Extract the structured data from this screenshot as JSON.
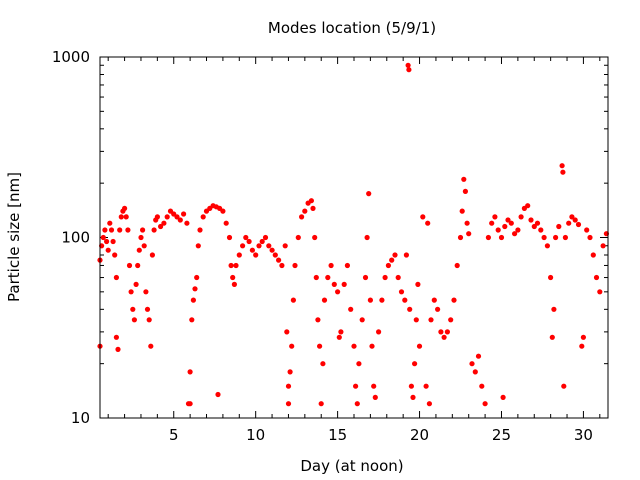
{
  "chart_data": {
    "type": "scatter",
    "title": "Modes location (5/9/1)",
    "xlabel": "Day (at noon)",
    "ylabel": "Particle size [nm]",
    "xlim": [
      0.5,
      31.5
    ],
    "ylim": [
      10,
      1000
    ],
    "y_scale": "log",
    "grid": false,
    "legend": "none",
    "x_ticks": [
      5,
      10,
      15,
      20,
      25,
      30
    ],
    "y_ticks": [
      10,
      100,
      1000
    ],
    "x_tick_labels": [
      "5",
      "10",
      "15",
      "20",
      "25",
      "30"
    ],
    "y_tick_labels": [
      "10",
      "100",
      "1000"
    ],
    "marker_color": "#ff0000",
    "series": [
      {
        "values": [
          [
            0.5,
            25
          ],
          [
            0.5,
            75
          ],
          [
            0.6,
            90
          ],
          [
            0.7,
            100
          ],
          [
            0.8,
            110
          ],
          [
            0.9,
            95
          ],
          [
            1.0,
            85
          ],
          [
            1.1,
            120
          ],
          [
            1.2,
            110
          ],
          [
            1.3,
            95
          ],
          [
            1.4,
            80
          ],
          [
            1.5,
            28
          ],
          [
            1.5,
            60
          ],
          [
            1.6,
            24
          ],
          [
            1.7,
            110
          ],
          [
            1.8,
            130
          ],
          [
            1.9,
            140
          ],
          [
            2.0,
            145
          ],
          [
            2.1,
            130
          ],
          [
            2.2,
            110
          ],
          [
            2.3,
            70
          ],
          [
            2.4,
            50
          ],
          [
            2.5,
            40
          ],
          [
            2.6,
            35
          ],
          [
            2.7,
            55
          ],
          [
            2.8,
            70
          ],
          [
            2.9,
            85
          ],
          [
            3.0,
            100
          ],
          [
            3.1,
            110
          ],
          [
            3.2,
            90
          ],
          [
            3.3,
            50
          ],
          [
            3.4,
            40
          ],
          [
            3.5,
            35
          ],
          [
            3.6,
            25
          ],
          [
            3.7,
            80
          ],
          [
            3.8,
            110
          ],
          [
            3.9,
            125
          ],
          [
            4.0,
            130
          ],
          [
            4.2,
            115
          ],
          [
            4.4,
            120
          ],
          [
            4.6,
            130
          ],
          [
            4.8,
            140
          ],
          [
            5.0,
            135
          ],
          [
            5.2,
            130
          ],
          [
            5.4,
            125
          ],
          [
            5.6,
            135
          ],
          [
            5.8,
            120
          ],
          [
            5.9,
            12
          ],
          [
            6.0,
            12
          ],
          [
            6.0,
            18
          ],
          [
            6.1,
            35
          ],
          [
            6.2,
            45
          ],
          [
            6.3,
            52
          ],
          [
            6.4,
            60
          ],
          [
            6.5,
            90
          ],
          [
            6.6,
            110
          ],
          [
            6.8,
            130
          ],
          [
            7.0,
            140
          ],
          [
            7.2,
            145
          ],
          [
            7.4,
            150
          ],
          [
            7.6,
            148
          ],
          [
            7.7,
            13.5
          ],
          [
            7.8,
            145
          ],
          [
            8.0,
            140
          ],
          [
            8.2,
            120
          ],
          [
            8.4,
            100
          ],
          [
            8.5,
            70
          ],
          [
            8.6,
            60
          ],
          [
            8.7,
            55
          ],
          [
            8.8,
            70
          ],
          [
            9.0,
            80
          ],
          [
            9.2,
            90
          ],
          [
            9.4,
            100
          ],
          [
            9.6,
            95
          ],
          [
            9.8,
            85
          ],
          [
            10.0,
            80
          ],
          [
            10.2,
            90
          ],
          [
            10.4,
            95
          ],
          [
            10.6,
            100
          ],
          [
            10.8,
            90
          ],
          [
            11.0,
            85
          ],
          [
            11.2,
            80
          ],
          [
            11.4,
            75
          ],
          [
            11.6,
            70
          ],
          [
            11.8,
            90
          ],
          [
            11.9,
            30
          ],
          [
            12.0,
            15
          ],
          [
            12.0,
            12
          ],
          [
            12.1,
            18
          ],
          [
            12.2,
            25
          ],
          [
            12.3,
            45
          ],
          [
            12.4,
            70
          ],
          [
            12.6,
            100
          ],
          [
            12.8,
            130
          ],
          [
            13.0,
            140
          ],
          [
            13.2,
            155
          ],
          [
            13.4,
            160
          ],
          [
            13.5,
            145
          ],
          [
            13.6,
            100
          ],
          [
            13.7,
            60
          ],
          [
            13.8,
            35
          ],
          [
            13.9,
            25
          ],
          [
            14.0,
            12
          ],
          [
            14.1,
            20
          ],
          [
            14.2,
            45
          ],
          [
            14.4,
            60
          ],
          [
            14.6,
            70
          ],
          [
            14.8,
            55
          ],
          [
            15.0,
            50
          ],
          [
            15.1,
            28
          ],
          [
            15.2,
            30
          ],
          [
            15.4,
            55
          ],
          [
            15.6,
            70
          ],
          [
            15.8,
            40
          ],
          [
            16.0,
            25
          ],
          [
            16.1,
            15
          ],
          [
            16.2,
            12
          ],
          [
            16.3,
            20
          ],
          [
            16.5,
            35
          ],
          [
            16.7,
            60
          ],
          [
            16.8,
            100
          ],
          [
            16.9,
            175
          ],
          [
            17.0,
            45
          ],
          [
            17.1,
            25
          ],
          [
            17.2,
            15
          ],
          [
            17.3,
            13
          ],
          [
            17.5,
            30
          ],
          [
            17.7,
            45
          ],
          [
            17.9,
            60
          ],
          [
            18.1,
            70
          ],
          [
            18.3,
            75
          ],
          [
            18.5,
            80
          ],
          [
            18.7,
            60
          ],
          [
            18.9,
            50
          ],
          [
            19.1,
            45
          ],
          [
            19.2,
            80
          ],
          [
            19.3,
            900
          ],
          [
            19.35,
            850
          ],
          [
            19.4,
            40
          ],
          [
            19.5,
            15
          ],
          [
            19.6,
            13
          ],
          [
            19.7,
            20
          ],
          [
            19.8,
            35
          ],
          [
            19.9,
            55
          ],
          [
            20.0,
            25
          ],
          [
            20.2,
            130
          ],
          [
            20.4,
            15
          ],
          [
            20.5,
            120
          ],
          [
            20.6,
            12
          ],
          [
            20.7,
            35
          ],
          [
            20.9,
            45
          ],
          [
            21.1,
            40
          ],
          [
            21.3,
            30
          ],
          [
            21.5,
            28
          ],
          [
            21.7,
            30
          ],
          [
            21.9,
            35
          ],
          [
            22.1,
            45
          ],
          [
            22.3,
            70
          ],
          [
            22.5,
            100
          ],
          [
            22.6,
            140
          ],
          [
            22.7,
            210
          ],
          [
            22.8,
            180
          ],
          [
            22.9,
            120
          ],
          [
            23.0,
            105
          ],
          [
            23.2,
            20
          ],
          [
            23.4,
            18
          ],
          [
            23.6,
            22
          ],
          [
            23.8,
            15
          ],
          [
            24.0,
            12
          ],
          [
            24.2,
            100
          ],
          [
            24.4,
            120
          ],
          [
            24.6,
            130
          ],
          [
            24.8,
            110
          ],
          [
            25.0,
            100
          ],
          [
            25.1,
            13
          ],
          [
            25.2,
            115
          ],
          [
            25.4,
            125
          ],
          [
            25.6,
            120
          ],
          [
            25.8,
            105
          ],
          [
            26.0,
            110
          ],
          [
            26.2,
            130
          ],
          [
            26.4,
            145
          ],
          [
            26.6,
            150
          ],
          [
            26.8,
            125
          ],
          [
            27.0,
            115
          ],
          [
            27.2,
            120
          ],
          [
            27.4,
            110
          ],
          [
            27.6,
            100
          ],
          [
            27.8,
            90
          ],
          [
            28.0,
            60
          ],
          [
            28.1,
            28
          ],
          [
            28.2,
            40
          ],
          [
            28.3,
            100
          ],
          [
            28.5,
            115
          ],
          [
            28.7,
            250
          ],
          [
            28.75,
            230
          ],
          [
            28.8,
            15
          ],
          [
            28.9,
            100
          ],
          [
            29.1,
            120
          ],
          [
            29.3,
            130
          ],
          [
            29.5,
            125
          ],
          [
            29.7,
            118
          ],
          [
            29.9,
            25
          ],
          [
            30.0,
            28
          ],
          [
            30.2,
            110
          ],
          [
            30.4,
            100
          ],
          [
            30.6,
            80
          ],
          [
            30.8,
            60
          ],
          [
            31.0,
            50
          ],
          [
            31.2,
            90
          ],
          [
            31.4,
            105
          ]
        ]
      }
    ]
  }
}
